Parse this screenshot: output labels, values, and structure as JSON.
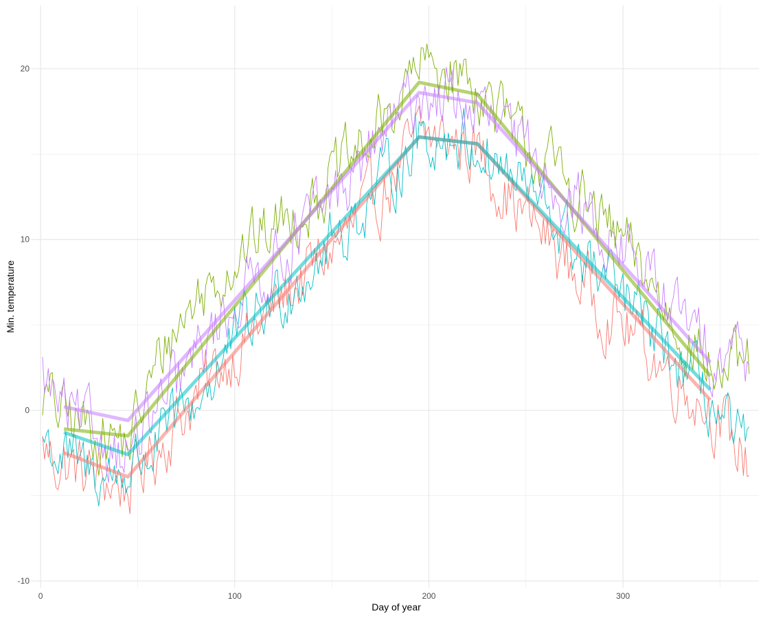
{
  "chart_data": {
    "type": "line",
    "title": "",
    "xlabel": "Day of year",
    "ylabel": "Min. temperature",
    "xlim": [
      -5,
      370
    ],
    "ylim": [
      -10.4,
      23.7
    ],
    "x_ticks": [
      0,
      100,
      200,
      300
    ],
    "x_tick_labels": [
      "0",
      "100",
      "200",
      "300"
    ],
    "x_minor_ticks": [
      50,
      150,
      250,
      350
    ],
    "y_ticks": [
      -10,
      0,
      10,
      20
    ],
    "y_tick_labels": [
      "-10",
      "0",
      "10",
      "20"
    ],
    "y_minor_ticks": [
      -5,
      5,
      15
    ],
    "grid": true,
    "legend": "none",
    "series": [
      {
        "color": "#F8766D",
        "daily_anchors": [
          [
            1,
            -2.2
          ],
          [
            8,
            -3.0
          ],
          [
            20,
            -3.5
          ],
          [
            35,
            -4.2
          ],
          [
            45,
            -4.5
          ],
          [
            55,
            -3.0
          ],
          [
            65,
            -1.5
          ],
          [
            80,
            0.8
          ],
          [
            100,
            3.5
          ],
          [
            130,
            7.2
          ],
          [
            160,
            10.5
          ],
          [
            175,
            12.5
          ],
          [
            195,
            16.0
          ],
          [
            210,
            15.8
          ],
          [
            225,
            15.2
          ],
          [
            245,
            12.0
          ],
          [
            265,
            9.5
          ],
          [
            285,
            6.5
          ],
          [
            305,
            4.5
          ],
          [
            325,
            2.0
          ],
          [
            345,
            0.2
          ],
          [
            355,
            -1.8
          ],
          [
            365,
            -3.0
          ]
        ],
        "noise": 1.6,
        "trend_x": [
          12,
          45,
          195,
          225,
          345
        ],
        "trend_y": [
          -2.5,
          -3.9,
          16.0,
          15.6,
          0.6
        ]
      },
      {
        "color": "#7CAE00",
        "daily_anchors": [
          [
            1,
            1.0
          ],
          [
            8,
            0.0
          ],
          [
            20,
            -0.8
          ],
          [
            35,
            -1.5
          ],
          [
            45,
            -2.0
          ],
          [
            55,
            1.0
          ],
          [
            65,
            4.0
          ],
          [
            80,
            6.5
          ],
          [
            100,
            9.0
          ],
          [
            130,
            11.5
          ],
          [
            160,
            14.5
          ],
          [
            175,
            16.5
          ],
          [
            195,
            20.0
          ],
          [
            210,
            20.0
          ],
          [
            225,
            19.0
          ],
          [
            245,
            16.0
          ],
          [
            265,
            14.0
          ],
          [
            285,
            11.5
          ],
          [
            305,
            9.0
          ],
          [
            325,
            5.5
          ],
          [
            345,
            2.5
          ],
          [
            355,
            2.0
          ],
          [
            365,
            2.5
          ]
        ],
        "noise": 1.6,
        "trend_x": [
          12,
          45,
          195,
          225,
          345
        ],
        "trend_y": [
          -1.1,
          -1.5,
          19.2,
          18.5,
          2.0
        ]
      },
      {
        "color": "#00BFC4",
        "daily_anchors": [
          [
            1,
            -1.5
          ],
          [
            8,
            -2.5
          ],
          [
            20,
            -3.5
          ],
          [
            35,
            -3.8
          ],
          [
            45,
            -3.5
          ],
          [
            55,
            -2.5
          ],
          [
            65,
            -1.5
          ],
          [
            80,
            0.5
          ],
          [
            100,
            4.0
          ],
          [
            130,
            7.5
          ],
          [
            160,
            11.0
          ],
          [
            175,
            13.0
          ],
          [
            195,
            16.0
          ],
          [
            210,
            16.0
          ],
          [
            225,
            15.5
          ],
          [
            245,
            13.5
          ],
          [
            265,
            11.0
          ],
          [
            285,
            8.0
          ],
          [
            305,
            6.0
          ],
          [
            325,
            3.0
          ],
          [
            345,
            0.5
          ],
          [
            355,
            -1.5
          ],
          [
            365,
            -2.5
          ]
        ],
        "noise": 1.6,
        "trend_x": [
          12,
          45,
          195,
          225,
          345
        ],
        "trend_y": [
          -1.3,
          -2.6,
          16.0,
          15.6,
          1.2
        ]
      },
      {
        "color": "#C77CFF",
        "daily_anchors": [
          [
            1,
            2.0
          ],
          [
            8,
            0.5
          ],
          [
            20,
            -1.0
          ],
          [
            35,
            -1.8
          ],
          [
            45,
            -2.5
          ],
          [
            55,
            -1.0
          ],
          [
            65,
            0.5
          ],
          [
            80,
            3.0
          ],
          [
            100,
            6.5
          ],
          [
            130,
            10.0
          ],
          [
            160,
            13.5
          ],
          [
            175,
            16.0
          ],
          [
            195,
            18.5
          ],
          [
            210,
            18.3
          ],
          [
            225,
            17.5
          ],
          [
            245,
            15.5
          ],
          [
            265,
            13.5
          ],
          [
            285,
            11.0
          ],
          [
            305,
            9.0
          ],
          [
            325,
            6.0
          ],
          [
            345,
            3.5
          ],
          [
            355,
            4.0
          ],
          [
            365,
            3.0
          ]
        ],
        "noise": 1.6,
        "trend_x": [
          12,
          45,
          195,
          225,
          345
        ],
        "trend_y": [
          0.2,
          -0.6,
          18.6,
          18.0,
          2.8
        ]
      }
    ]
  }
}
